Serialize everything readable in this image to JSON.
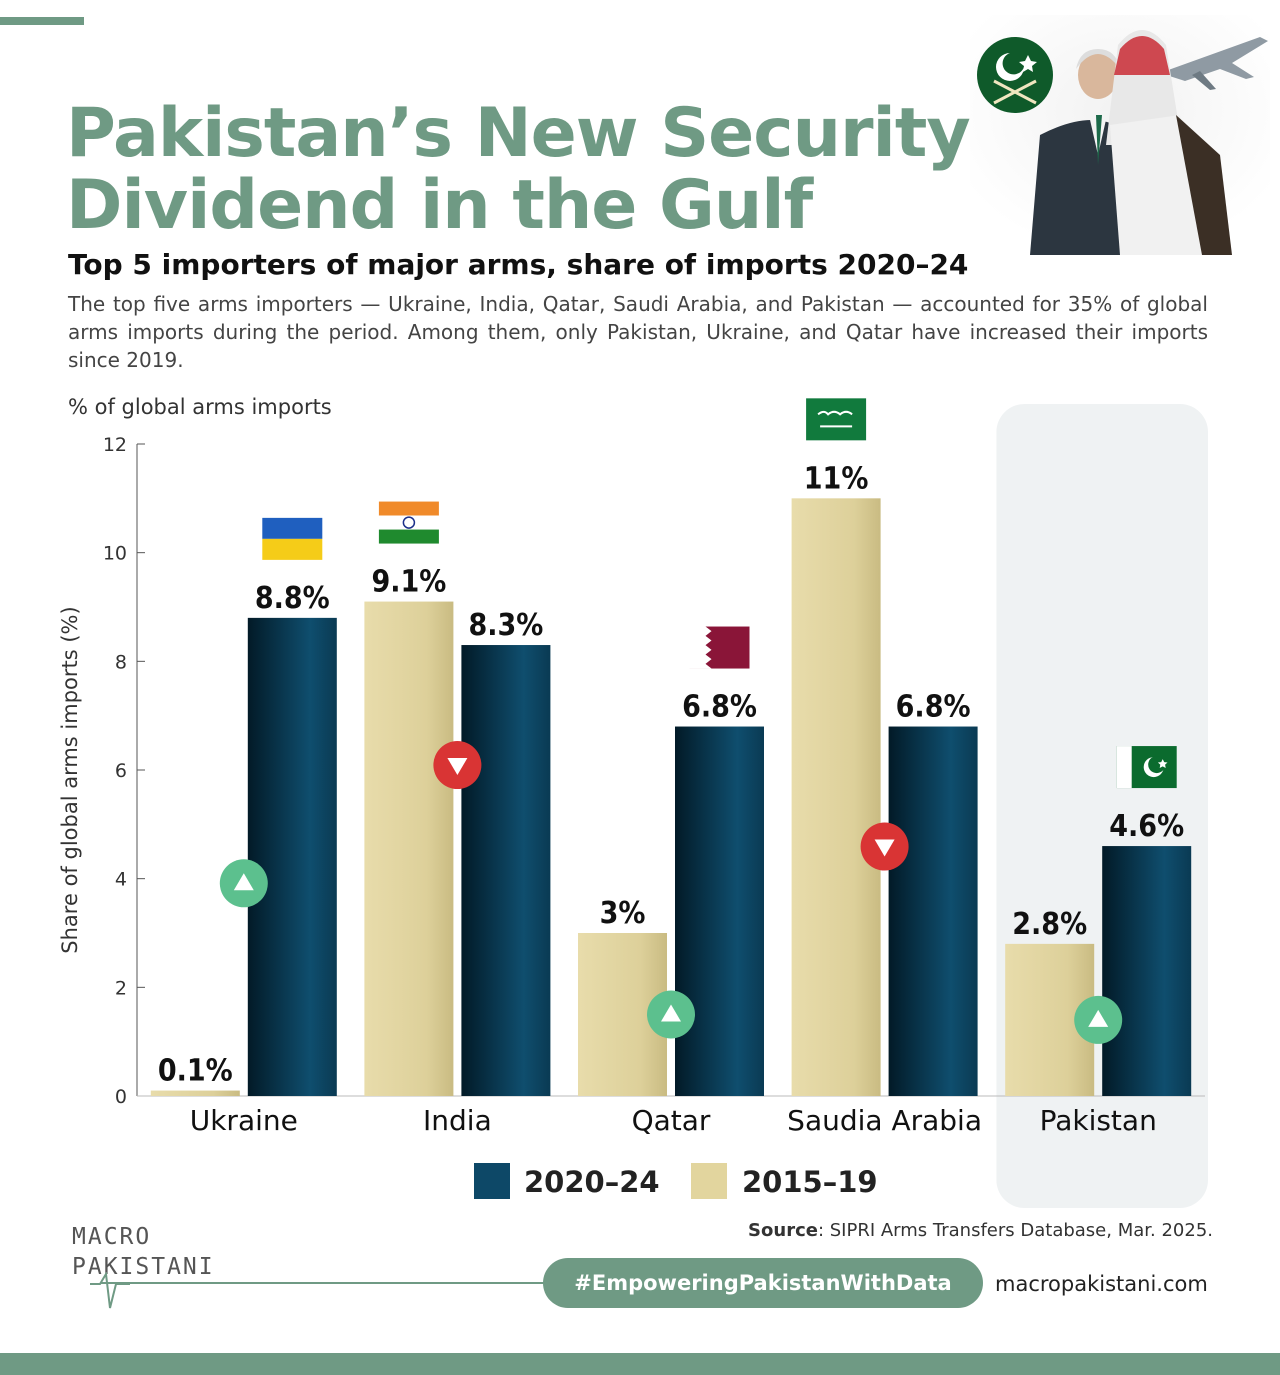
{
  "header": {
    "title_line1": "Pakistan’s New Security",
    "title_line2": "Dividend in the Gulf",
    "subtitle": "Top 5 importers of major arms, share of imports 2020–24",
    "description": "The top five arms importers — Ukraine, India, Qatar, Saudi Arabia, and Pakistan — accounted for 35% of global arms imports during the period. Among them, only Pakistan, Ukraine, and Qatar have increased their imports since 2019.",
    "chart_caption": "% of global arms imports"
  },
  "chart_data": {
    "type": "bar",
    "title": "Top 5 importers of major arms, share of imports 2020–24",
    "xlabel": "",
    "ylabel": "Share of global arms imports (%)",
    "ylim": [
      0,
      12
    ],
    "yticks": [
      0,
      2,
      4,
      6,
      8,
      10,
      12
    ],
    "categories": [
      "Ukraine",
      "India",
      "Qatar",
      "Saudia Arabia",
      "Pakistan"
    ],
    "series": [
      {
        "name": "2015–19",
        "color": "#e2d59e",
        "values": [
          0.1,
          9.1,
          3,
          11,
          2.8
        ],
        "labels": [
          "0.1%",
          "9.1%",
          "3%",
          "11%",
          "2.8%"
        ]
      },
      {
        "name": "2020–24",
        "color": "#0d4867",
        "values": [
          8.8,
          8.3,
          6.8,
          6.8,
          4.6
        ],
        "labels": [
          "8.8%",
          "8.3%",
          "6.8%",
          "6.8%",
          "4.6%"
        ]
      }
    ],
    "trend": [
      "up",
      "down",
      "up",
      "down",
      "up"
    ],
    "trend_colors": {
      "up": "#5cc08e",
      "down": "#d93434"
    },
    "highlight_category": "Pakistan",
    "flags": [
      "ukraine-flag",
      "india-flag",
      "qatar-flag",
      "saudi-flag",
      "pakistan-flag"
    ],
    "legend": [
      "2020–24",
      "2015–19"
    ],
    "legend_position": "bottom-center"
  },
  "footer": {
    "source_label": "Source",
    "source_text": ": SIPRI Arms Transfers Database, Mar. 2025.",
    "logo_line1": "MACRO",
    "logo_line2": "PAKISTANI",
    "hashtag": "#EmpoweringPakistanWithData",
    "website": "macropakistani.com"
  },
  "colors": {
    "accent": "#6f9a84",
    "bar_new": "#0d4867",
    "bar_old": "#e2d59e"
  }
}
